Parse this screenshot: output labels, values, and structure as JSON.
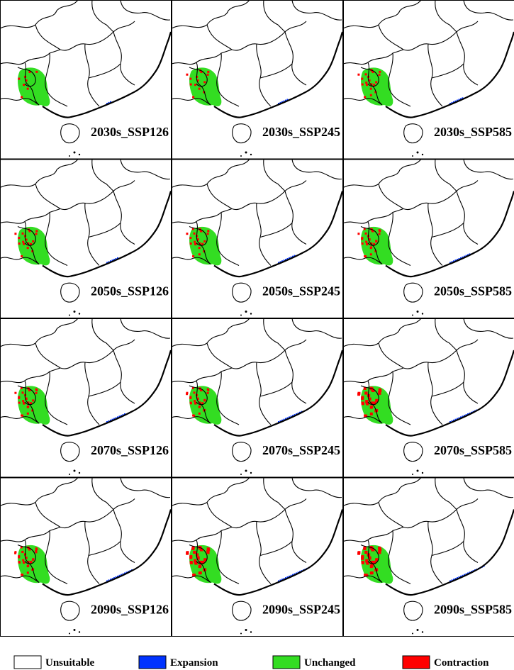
{
  "panels": [
    {
      "label": "2030s_SSP126"
    },
    {
      "label": "2030s_SSP245"
    },
    {
      "label": "2030s_SSP585"
    },
    {
      "label": "2050s_SSP126"
    },
    {
      "label": "2050s_SSP245"
    },
    {
      "label": "2050s_SSP585"
    },
    {
      "label": "2070s_SSP126"
    },
    {
      "label": "2070s_SSP245"
    },
    {
      "label": "2070s_SSP585"
    },
    {
      "label": "2090s_SSP126"
    },
    {
      "label": "2090s_SSP245"
    },
    {
      "label": "2090s_SSP585"
    }
  ],
  "legend": [
    {
      "label": "Unsuitable",
      "color": "#ffffff"
    },
    {
      "label": "Expansion",
      "color": "#0033ff"
    },
    {
      "label": "Unchanged",
      "color": "#33dd22"
    },
    {
      "label": "Contraction",
      "color": "#ff0000"
    }
  ]
}
